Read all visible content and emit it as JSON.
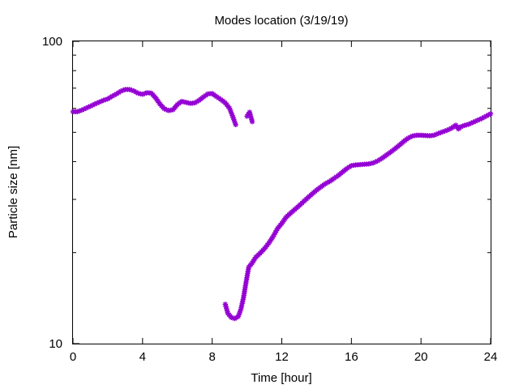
{
  "chart_data": {
    "type": "scatter",
    "title": "Modes location (3/19/19)",
    "xlabel": "Time [hour]",
    "ylabel": "Particle size [nm]",
    "xlim": [
      0,
      24
    ],
    "ylim": [
      10,
      100
    ],
    "y_scale": "log",
    "x_ticks": [
      0,
      4,
      8,
      12,
      16,
      20,
      24
    ],
    "x_tick_labels": [
      "0",
      "4",
      "8",
      "12",
      "16",
      "20",
      "24"
    ],
    "y_ticks": [
      10,
      100
    ],
    "y_tick_labels": [
      "10",
      "100"
    ],
    "grid": false,
    "legend": "none",
    "marker": "star",
    "color": "#9400d3",
    "series": [
      {
        "segments": [
          [
            [
              0,
              58.5
            ],
            [
              0.25,
              58.5
            ],
            [
              0.5,
              59.2
            ],
            [
              0.75,
              60.1
            ],
            [
              1.0,
              61.0
            ],
            [
              1.25,
              62.0
            ],
            [
              1.5,
              62.9
            ],
            [
              1.75,
              63.8
            ],
            [
              2.0,
              64.5
            ],
            [
              2.25,
              65.8
            ],
            [
              2.5,
              67.0
            ],
            [
              2.75,
              68.4
            ],
            [
              3.0,
              69.3
            ],
            [
              3.25,
              69.3
            ],
            [
              3.5,
              68.5
            ],
            [
              3.75,
              67.3
            ],
            [
              4.0,
              66.8
            ],
            [
              4.25,
              67.6
            ],
            [
              4.5,
              67.4
            ],
            [
              4.75,
              65.0
            ],
            [
              5.0,
              62.0
            ],
            [
              5.25,
              59.8
            ],
            [
              5.5,
              59.0
            ],
            [
              5.75,
              59.4
            ],
            [
              6.0,
              61.8
            ],
            [
              6.25,
              63.3
            ],
            [
              6.5,
              62.8
            ],
            [
              6.75,
              62.3
            ],
            [
              7.0,
              62.6
            ],
            [
              7.25,
              63.8
            ],
            [
              7.5,
              65.5
            ],
            [
              7.75,
              67.0
            ],
            [
              8.0,
              67.2
            ],
            [
              8.25,
              65.6
            ],
            [
              8.5,
              64.2
            ],
            [
              8.75,
              62.6
            ],
            [
              9.0,
              60.0
            ],
            [
              9.2,
              56.0
            ],
            [
              9.35,
              53.0
            ]
          ],
          [
            [
              10.0,
              56.5
            ],
            [
              10.15,
              58.3
            ],
            [
              10.3,
              54.2
            ]
          ],
          [
            [
              8.75,
              13.5
            ],
            [
              8.9,
              12.6
            ],
            [
              9.1,
              12.2
            ],
            [
              9.3,
              12.1
            ],
            [
              9.5,
              12.3
            ],
            [
              9.65,
              13.0
            ],
            [
              9.8,
              14.2
            ],
            [
              9.95,
              16.0
            ],
            [
              10.1,
              17.9
            ],
            [
              10.3,
              18.5
            ],
            [
              10.5,
              19.3
            ],
            [
              10.75,
              19.9
            ],
            [
              11.0,
              20.6
            ],
            [
              11.25,
              21.5
            ],
            [
              11.5,
              22.6
            ],
            [
              11.75,
              24.0
            ],
            [
              12.0,
              25.0
            ],
            [
              12.25,
              26.2
            ],
            [
              12.5,
              27.0
            ],
            [
              12.75,
              27.8
            ],
            [
              13.0,
              28.6
            ],
            [
              13.25,
              29.5
            ],
            [
              13.5,
              30.4
            ],
            [
              13.75,
              31.3
            ],
            [
              14.0,
              32.2
            ],
            [
              14.25,
              33.0
            ],
            [
              14.5,
              33.8
            ],
            [
              14.75,
              34.4
            ],
            [
              15.0,
              35.2
            ],
            [
              15.25,
              36.0
            ],
            [
              15.5,
              37.0
            ],
            [
              15.75,
              38.0
            ],
            [
              16.0,
              38.8
            ],
            [
              16.25,
              39.0
            ],
            [
              16.5,
              39.1
            ],
            [
              16.75,
              39.2
            ],
            [
              17.0,
              39.3
            ],
            [
              17.25,
              39.6
            ],
            [
              17.5,
              40.2
            ],
            [
              17.75,
              41.0
            ],
            [
              18.0,
              42.0
            ],
            [
              18.25,
              43.0
            ],
            [
              18.5,
              44.1
            ],
            [
              18.75,
              45.3
            ],
            [
              19.0,
              46.6
            ],
            [
              19.25,
              47.8
            ],
            [
              19.5,
              48.6
            ],
            [
              19.75,
              48.9
            ],
            [
              20.0,
              48.9
            ],
            [
              20.25,
              48.8
            ],
            [
              20.5,
              48.7
            ],
            [
              20.75,
              48.9
            ],
            [
              21.0,
              49.6
            ],
            [
              21.25,
              50.2
            ],
            [
              21.5,
              50.8
            ],
            [
              21.75,
              51.6
            ],
            [
              22.0,
              52.8
            ],
            [
              22.15,
              51.3
            ],
            [
              22.3,
              52.2
            ],
            [
              22.5,
              52.7
            ],
            [
              22.75,
              53.2
            ],
            [
              23.0,
              54.0
            ],
            [
              23.25,
              54.8
            ],
            [
              23.5,
              55.6
            ],
            [
              23.75,
              56.6
            ],
            [
              24.0,
              57.6
            ]
          ]
        ]
      }
    ]
  }
}
